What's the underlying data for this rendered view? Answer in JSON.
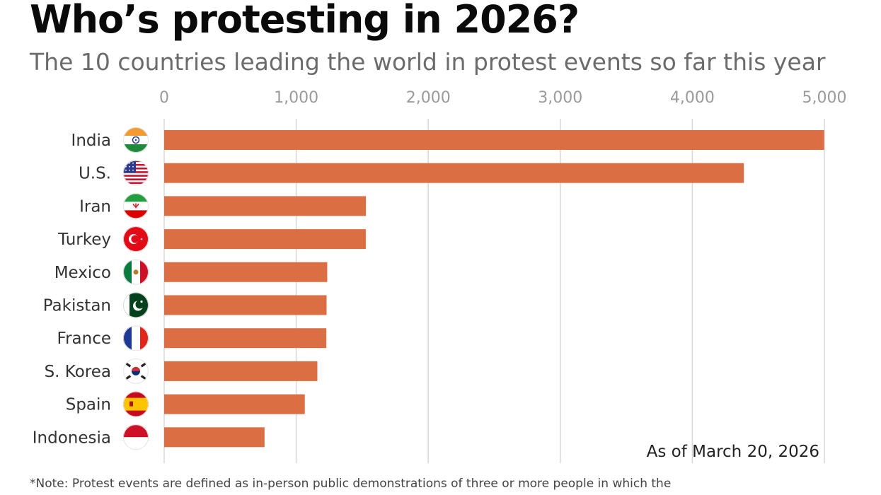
{
  "title": "Who’s protesting in 2026?",
  "subtitle": "The 10 countries leading the world in protest events so far this year",
  "as_of": "As of March 20, 2026",
  "note": "*Note: Protest events are defined as in-person public demonstrations of three or more people in which the",
  "colors": {
    "bar": "#dc6e43",
    "grid": "#d7d7d7",
    "axis": "#9a9a9a"
  },
  "chart_data": {
    "type": "bar",
    "orientation": "horizontal",
    "title": "Who’s protesting in 2026?",
    "subtitle": "The 10 countries leading the world in protest events so far this year",
    "categories": [
      "India",
      "U.S.",
      "Iran",
      "Turkey",
      "Mexico",
      "Pakistan",
      "France",
      "S. Korea",
      "Spain",
      "Indonesia"
    ],
    "flag_icons": [
      "flag-india-icon",
      "flag-us-icon",
      "flag-iran-icon",
      "flag-turkey-icon",
      "flag-mexico-icon",
      "flag-pakistan-icon",
      "flag-france-icon",
      "flag-south-korea-icon",
      "flag-spain-icon",
      "flag-indonesia-icon"
    ],
    "values": [
      4998,
      4390,
      1528,
      1527,
      1235,
      1230,
      1228,
      1160,
      1065,
      760
    ],
    "xlim": [
      0,
      5000
    ],
    "xticks": [
      0,
      1000,
      2000,
      3000,
      4000,
      5000
    ],
    "xtick_labels": [
      "0",
      "1,000",
      "2,000",
      "3,000",
      "4,000",
      "5,000"
    ],
    "axis_position": "top",
    "grid": true,
    "xlabel": "",
    "ylabel": ""
  }
}
